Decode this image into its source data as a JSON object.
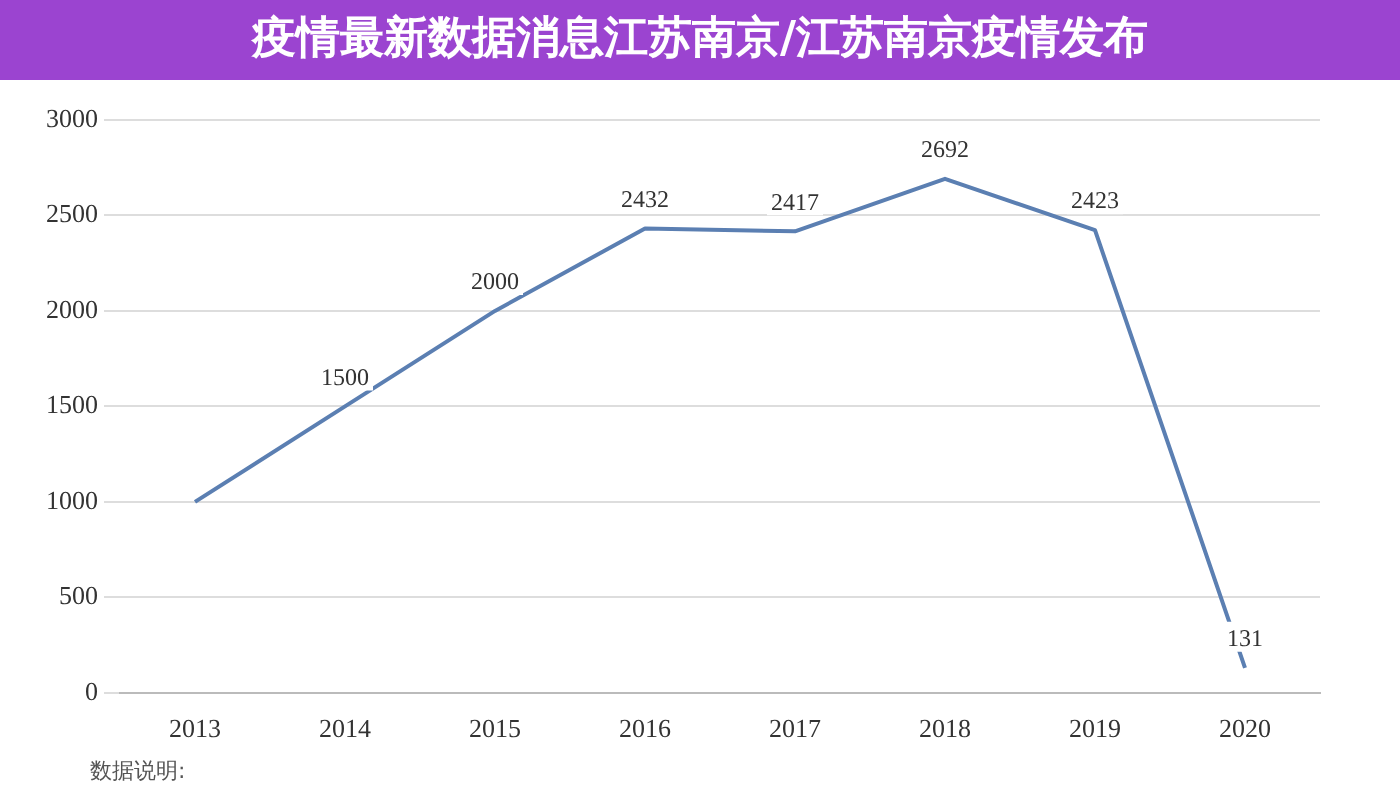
{
  "chart_data": {
    "type": "line",
    "title": "疫情最新数据消息江苏南京/江苏南京疫情发布",
    "categories": [
      "2013",
      "2014",
      "2015",
      "2016",
      "2017",
      "2018",
      "2019",
      "2020"
    ],
    "series": [
      {
        "color": "#5b7fb2",
        "values": [
          1000,
          1500,
          2000,
          2432,
          2417,
          2692,
          2423,
          131
        ],
        "value_labels": [
          null,
          "1500",
          "2000",
          "2432",
          "2417",
          "2692",
          "2423",
          "131"
        ]
      }
    ],
    "ylim": [
      0,
      3000
    ],
    "yticks": [
      0,
      500,
      1000,
      1500,
      2000,
      2500,
      3000
    ],
    "grid": "y",
    "legend": false,
    "marker": "none",
    "line_style": "solid",
    "annotations": [
      "数据说明:"
    ]
  }
}
